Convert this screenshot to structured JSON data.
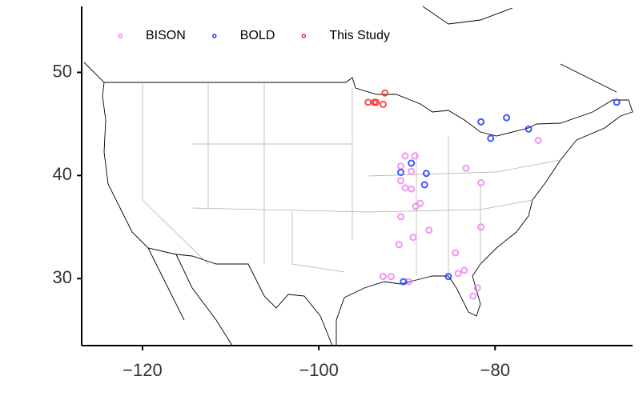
{
  "chart_data": {
    "type": "scatter",
    "xlim": [
      -126.9,
      -64.4
    ],
    "ylim": [
      23.5,
      56.4
    ],
    "xticks": [
      {
        "value": -120,
        "label": "−120"
      },
      {
        "value": -100,
        "label": "−100"
      },
      {
        "value": -80,
        "label": "−80"
      }
    ],
    "yticks": [
      30,
      40,
      50
    ],
    "legend": "top-left",
    "series": [
      {
        "name": "BISON",
        "color": "#ee82ee",
        "x": [
          -90.2,
          -89.1,
          -90.7,
          -89.5,
          -90.7,
          -90.2,
          -89.5,
          -88.5,
          -89.0,
          -90.7,
          -90.9,
          -89.3,
          -87.5,
          -92.7,
          -91.8,
          -89.8,
          -84.5,
          -84.2,
          -83.5,
          -82.5,
          -82.0,
          -83.3,
          -81.6,
          -81.6,
          -75.1
        ],
        "values": [
          41.9,
          41.9,
          40.9,
          40.4,
          39.5,
          38.8,
          38.7,
          37.3,
          37.0,
          36.0,
          33.3,
          34.0,
          34.7,
          30.2,
          30.2,
          29.7,
          32.5,
          30.5,
          30.8,
          28.3,
          29.1,
          40.7,
          39.3,
          35.0,
          43.4
        ]
      },
      {
        "name": "BOLD",
        "color": "#1a3cff",
        "x": [
          -81.6,
          -78.7,
          -80.5,
          -76.2,
          -66.2,
          -90.7,
          -89.5,
          -87.8,
          -88.0,
          -85.3,
          -90.4
        ],
        "values": [
          45.2,
          45.6,
          43.6,
          44.5,
          47.1,
          40.3,
          41.2,
          40.2,
          39.1,
          30.2,
          29.7
        ]
      },
      {
        "name": "This Study",
        "color": "#ff2a2a",
        "x": [
          -94.4,
          -93.5,
          -92.5,
          -92.7,
          -93.7
        ],
        "values": [
          47.1,
          47.1,
          48.0,
          46.9,
          47.1
        ]
      }
    ]
  }
}
